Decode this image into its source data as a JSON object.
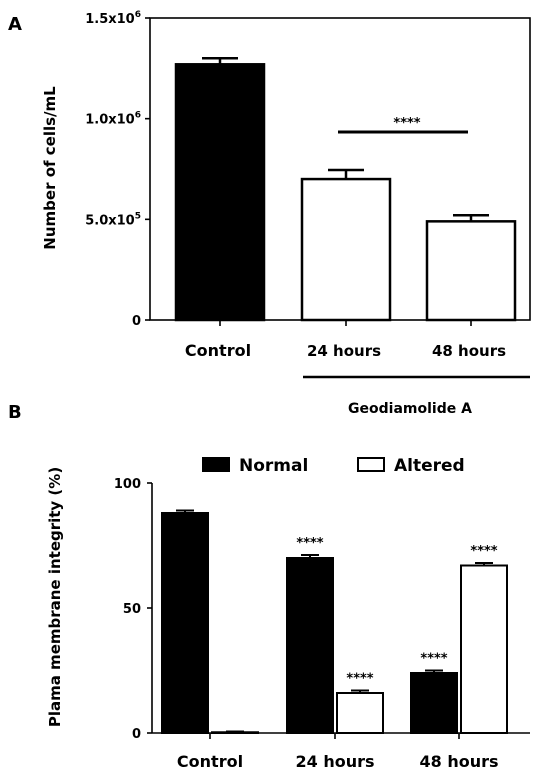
{
  "panel_a_label": "A",
  "panel_b_label": "B",
  "chart_data": [
    {
      "type": "bar",
      "panel": "A",
      "ylabel": "Number of cells/mL",
      "ylim": [
        0,
        1500000
      ],
      "yticks": [
        {
          "value": 0,
          "label": "0"
        },
        {
          "value": 500000,
          "base": "5.0x10",
          "exp": "5"
        },
        {
          "value": 1000000,
          "base": "1.0x10",
          "exp": "6"
        },
        {
          "value": 1500000,
          "base": "1.5x10",
          "exp": "6"
        }
      ],
      "categories": [
        "Control",
        "24 hours",
        "48 hours"
      ],
      "values": [
        1270000,
        700000,
        490000
      ],
      "errors": [
        30000,
        45000,
        30000
      ],
      "fills": [
        "#000000",
        "#ffffff",
        "#ffffff"
      ],
      "group_label": "Geodiamolide A",
      "significance": "****"
    },
    {
      "type": "bar",
      "panel": "B",
      "ylabel": "Plama membrane integrity (%)",
      "ylim": [
        0,
        100
      ],
      "yticks": [
        {
          "value": 0,
          "label": "0"
        },
        {
          "value": 50,
          "label": "50"
        },
        {
          "value": 100,
          "label": "100"
        }
      ],
      "categories": [
        "Control",
        "24 hours",
        "48 hours"
      ],
      "series": [
        {
          "name": "Normal",
          "color": "#000000",
          "values": [
            88,
            70,
            24
          ],
          "errors": [
            1,
            1.2,
            1
          ],
          "sig": [
            "",
            "****",
            "****"
          ]
        },
        {
          "name": "Altered",
          "color": "#ffffff",
          "values": [
            0.3,
            16,
            67
          ],
          "errors": [
            0.3,
            1,
            1
          ],
          "sig": [
            "",
            "****",
            "****"
          ]
        }
      ]
    }
  ]
}
